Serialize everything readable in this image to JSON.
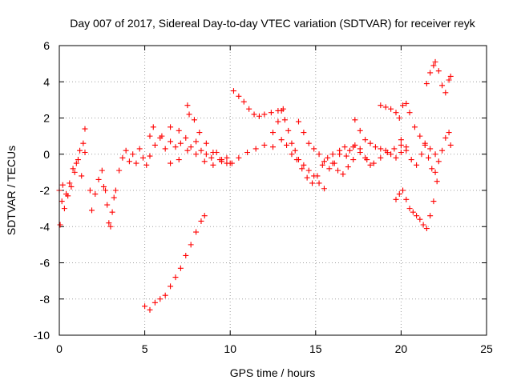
{
  "chart_data": {
    "type": "scatter",
    "title": "Day 007 of 2017, Sidereal Day-to-day VTEC variation (SDTVAR) for receiver reyk",
    "xlabel": "GPS time / hours",
    "ylabel": "SDTVAR / TECUs",
    "xlim": [
      0,
      25
    ],
    "ylim": [
      -10,
      6
    ],
    "xticks": [
      "0",
      "5",
      "10",
      "15",
      "20",
      "25"
    ],
    "yticks": [
      "-10",
      "-8",
      "-6",
      "-4",
      "-2",
      "0",
      "2",
      "4",
      "6"
    ],
    "grid": true,
    "marker": "+",
    "color": "#ff0000",
    "series": [
      {
        "x": [
          0.0,
          0.2,
          0.4,
          0.6,
          0.8,
          1.0,
          1.2,
          1.4,
          1.5
        ],
        "y": [
          -2.0,
          -1.7,
          -2.2,
          -1.6,
          -0.8,
          -0.5,
          0.2,
          0.6,
          0.1
        ]
      },
      {
        "x": [
          0.05,
          0.15,
          0.3,
          0.5,
          0.7,
          0.9,
          1.1,
          1.3
        ],
        "y": [
          -3.9,
          -2.6,
          -3.0,
          -2.3,
          -1.8,
          -1.0,
          -0.3,
          -1.2
        ]
      },
      {
        "x": [
          1.5,
          1.8,
          1.9,
          2.1,
          2.3,
          2.5,
          2.6
        ],
        "y": [
          1.4,
          -2.0,
          -3.1,
          -2.2,
          -1.4,
          -0.9,
          -1.8
        ]
      },
      {
        "x": [
          2.7,
          2.8,
          2.9,
          3.0,
          3.1,
          3.2,
          3.3
        ],
        "y": [
          -2.0,
          -2.8,
          -3.8,
          -4.0,
          -3.2,
          -2.4,
          -2.0
        ]
      },
      {
        "x": [
          3.5,
          3.7,
          3.9,
          4.1,
          4.3,
          4.5,
          4.7,
          4.9,
          5.1,
          5.3
        ],
        "y": [
          -0.9,
          -0.2,
          0.2,
          -0.4,
          0.0,
          -0.5,
          0.3,
          -0.2,
          -0.6,
          -0.1
        ]
      },
      {
        "x": [
          5.0,
          5.3,
          5.6,
          5.9,
          6.2,
          6.5,
          6.8,
          7.1,
          7.4,
          7.7,
          8.0,
          8.3,
          8.5
        ],
        "y": [
          -8.4,
          -8.6,
          -8.2,
          -8.0,
          -7.8,
          -7.3,
          -6.8,
          -6.3,
          -5.6,
          -5.0,
          -4.3,
          -3.7,
          -3.4
        ]
      },
      {
        "x": [
          5.3,
          5.6,
          5.9,
          6.2,
          6.5,
          6.8,
          7.1,
          7.4,
          7.7,
          8.0,
          8.3,
          8.6,
          8.9,
          9.2,
          9.5,
          9.8,
          10.1
        ],
        "y": [
          1.0,
          0.5,
          0.9,
          0.3,
          0.7,
          0.4,
          0.6,
          0.9,
          0.4,
          0.7,
          0.2,
          0.0,
          -0.2,
          0.1,
          -0.4,
          -0.2,
          -0.5
        ]
      },
      {
        "x": [
          5.5,
          6.0,
          6.5,
          7.0,
          7.5,
          7.6,
          7.9,
          8.2,
          8.6,
          9.0,
          9.4,
          9.8
        ],
        "y": [
          1.5,
          1.0,
          1.5,
          1.3,
          2.7,
          2.2,
          1.9,
          1.2,
          0.6,
          0.1,
          -0.3,
          -0.5
        ]
      },
      {
        "x": [
          6.5,
          7.0,
          7.5,
          8.0,
          8.5,
          9.0,
          9.5,
          10.0,
          10.5,
          11.0,
          11.5,
          12.0,
          12.5,
          13.0
        ],
        "y": [
          -0.5,
          -0.3,
          0.2,
          0.0,
          -0.4,
          -0.6,
          -0.3,
          -0.5,
          -0.2,
          0.1,
          0.3,
          0.5,
          0.4,
          0.8
        ]
      },
      {
        "x": [
          10.2,
          10.5,
          10.8,
          11.1,
          11.4,
          11.7,
          12.0,
          12.4,
          12.8,
          13.1
        ],
        "y": [
          3.5,
          3.2,
          2.9,
          2.5,
          2.2,
          2.1,
          2.2,
          2.3,
          2.4,
          2.5
        ]
      },
      {
        "x": [
          12.5,
          12.8,
          13.0,
          13.2,
          13.4,
          13.6,
          13.8,
          14.0,
          14.3,
          14.6,
          14.9,
          15.2,
          15.5
        ],
        "y": [
          1.2,
          1.8,
          2.4,
          1.9,
          1.3,
          0.6,
          0.2,
          -0.3,
          -0.6,
          -0.9,
          -1.2,
          -1.6,
          -1.9
        ]
      },
      {
        "x": [
          13.3,
          13.6,
          13.9,
          14.2,
          14.5,
          14.8,
          15.1,
          15.4,
          15.7,
          16.0,
          16.3,
          16.6,
          16.9,
          17.2
        ],
        "y": [
          0.5,
          0.0,
          -0.3,
          -0.8,
          -1.3,
          -1.6,
          -1.2,
          -0.6,
          -0.2,
          -0.5,
          -0.9,
          -1.1,
          -0.7,
          -0.3
        ]
      },
      {
        "x": [
          14.0,
          14.3,
          14.6,
          14.9,
          15.2,
          15.5,
          15.8,
          16.1,
          16.4,
          16.7,
          17.0,
          17.3,
          17.6,
          17.9,
          18.2
        ],
        "y": [
          1.8,
          1.2,
          0.6,
          0.3,
          0.0,
          -0.4,
          -0.8,
          -0.5,
          0.0,
          0.4,
          0.2,
          0.5,
          0.3,
          -0.2,
          -0.6
        ]
      },
      {
        "x": [
          16.0,
          16.4,
          16.8,
          17.2,
          17.6,
          18.0,
          18.4,
          18.8,
          19.2,
          19.6,
          20.0
        ],
        "y": [
          0.0,
          0.2,
          -0.1,
          0.4,
          0.1,
          -0.3,
          -0.5,
          -0.2,
          0.1,
          0.3,
          0.5
        ]
      },
      {
        "x": [
          17.3,
          17.6,
          17.9,
          18.2,
          18.5,
          18.8,
          19.1,
          19.4,
          19.7,
          20.0,
          20.3
        ],
        "y": [
          1.9,
          1.3,
          0.8,
          0.6,
          0.4,
          0.3,
          0.2,
          0.0,
          -0.2,
          0.1,
          0.4
        ]
      },
      {
        "x": [
          18.8,
          19.1,
          19.4,
          19.7,
          19.9,
          20.1,
          20.3,
          20.5,
          20.8,
          21.1,
          21.4,
          21.7,
          22.0
        ],
        "y": [
          2.7,
          2.6,
          2.5,
          2.3,
          2.0,
          2.7,
          2.8,
          2.3,
          1.5,
          1.0,
          0.6,
          0.3,
          0.0
        ]
      },
      {
        "x": [
          20.0,
          20.3,
          20.6,
          20.9,
          21.2,
          21.4,
          21.6,
          21.8,
          22.0,
          22.2,
          22.4,
          22.6,
          22.8,
          22.9
        ],
        "y": [
          0.8,
          0.2,
          -0.3,
          -0.6,
          0.0,
          0.5,
          -0.2,
          -0.8,
          -1.0,
          -0.4,
          0.2,
          0.9,
          1.2,
          0.5
        ]
      },
      {
        "x": [
          19.7,
          19.9,
          20.1,
          20.3,
          20.5,
          20.7,
          20.9,
          21.1,
          21.3,
          21.5,
          21.7,
          21.9,
          22.1
        ],
        "y": [
          -2.5,
          -2.2,
          -2.0,
          -2.5,
          -3.0,
          -3.2,
          -3.4,
          -3.6,
          -3.9,
          -4.1,
          -3.4,
          -2.6,
          -1.5
        ]
      },
      {
        "x": [
          21.5,
          21.7,
          21.9,
          22.0,
          22.2,
          22.4,
          22.6,
          22.8,
          22.9
        ],
        "y": [
          3.9,
          4.5,
          4.9,
          5.1,
          4.6,
          3.8,
          3.4,
          4.1,
          4.3
        ]
      }
    ]
  }
}
